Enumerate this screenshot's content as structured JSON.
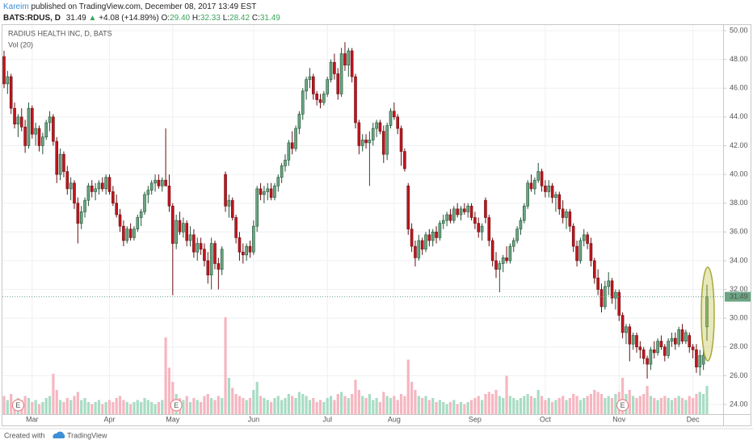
{
  "header": {
    "author": "Kareim",
    "published": "published on TradingView.com, December 08, 2017 13:49 EST",
    "symbol": "BATS:RDUS, D",
    "last": "31.49",
    "change_arrow": "▲",
    "change": "+4.08 (+14.89%)",
    "ohlc": [
      {
        "label": "O:",
        "value": "29.40"
      },
      {
        "label": "H:",
        "value": "32.33"
      },
      {
        "label": "L:",
        "value": "28.42"
      },
      {
        "label": "C:",
        "value": "31.49"
      }
    ]
  },
  "footer": {
    "created": "Created with",
    "brand": "TradingView"
  },
  "chart_data": {
    "type": "candlestick",
    "title": "RADIUS HEALTH INC, D, BATS",
    "volume_label": "Vol (20)",
    "up_color": "#6ba583",
    "up_border": "#225437",
    "down_color": "#c0161e",
    "down_border": "#6b0f12",
    "volume_up_color": "#a8dcc4",
    "volume_down_color": "#f6b6c0",
    "ylim": [
      24,
      50
    ],
    "yticks": [
      {
        "value": 24,
        "label": "24.00"
      },
      {
        "value": 26,
        "label": "26.00"
      },
      {
        "value": 28,
        "label": "28.00"
      },
      {
        "value": 30,
        "label": "30.00"
      },
      {
        "value": 32,
        "label": "32.00"
      },
      {
        "value": 34,
        "label": "34.00"
      },
      {
        "value": 36,
        "label": "36.00"
      },
      {
        "value": 38,
        "label": "38.00"
      },
      {
        "value": 40,
        "label": "40.00"
      },
      {
        "value": 42,
        "label": "42.00"
      },
      {
        "value": 44,
        "label": "44.00"
      },
      {
        "value": 46,
        "label": "46.00"
      },
      {
        "value": 48,
        "label": "48.00"
      },
      {
        "value": 50,
        "label": "50.00"
      }
    ],
    "grid": true,
    "volume_lim": [
      0,
      5
    ],
    "xticks": [
      {
        "value": 8,
        "label": "Mar"
      },
      {
        "value": 30,
        "label": "Apr"
      },
      {
        "value": 48,
        "label": "May"
      },
      {
        "value": 71,
        "label": "Jun"
      },
      {
        "value": 92,
        "label": "Jul"
      },
      {
        "value": 111,
        "label": "Aug"
      },
      {
        "value": 134,
        "label": "Sep"
      },
      {
        "value": 154,
        "label": "Oct"
      },
      {
        "value": 175,
        "label": "Nov"
      },
      {
        "value": 196,
        "label": "Dec"
      }
    ],
    "events": [
      {
        "index": 4,
        "label": "E"
      },
      {
        "index": 49,
        "label": "E"
      },
      {
        "index": 176,
        "label": "E"
      }
    ],
    "candles": [
      [
        48.2,
        48.6,
        46.0,
        46.3
      ],
      [
        46.3,
        47.2,
        45.6,
        46.8
      ],
      [
        46.8,
        47.0,
        44.2,
        44.6
      ],
      [
        44.6,
        45.0,
        43.2,
        43.5
      ],
      [
        43.5,
        44.2,
        42.6,
        44.0
      ],
      [
        44.0,
        44.6,
        43.0,
        43.3
      ],
      [
        43.3,
        43.8,
        41.5,
        42.0
      ],
      [
        42.0,
        45.0,
        41.8,
        44.6
      ],
      [
        44.6,
        44.8,
        42.5,
        42.8
      ],
      [
        42.8,
        43.6,
        42.0,
        43.2
      ],
      [
        43.2,
        43.4,
        41.6,
        42.0
      ],
      [
        42.0,
        42.9,
        41.4,
        42.6
      ],
      [
        42.6,
        43.8,
        42.4,
        43.6
      ],
      [
        43.6,
        44.4,
        43.0,
        44.0
      ],
      [
        44.0,
        44.2,
        42.0,
        42.3
      ],
      [
        42.3,
        42.6,
        39.4,
        40.0
      ],
      [
        40.0,
        41.8,
        39.6,
        41.4
      ],
      [
        41.4,
        41.6,
        39.8,
        40.2
      ],
      [
        40.2,
        40.6,
        38.6,
        39.0
      ],
      [
        39.0,
        39.8,
        38.2,
        39.4
      ],
      [
        39.4,
        39.6,
        37.6,
        38.0
      ],
      [
        38.0,
        38.4,
        35.2,
        36.6
      ],
      [
        36.6,
        37.8,
        36.2,
        37.4
      ],
      [
        37.4,
        38.4,
        37.0,
        38.2
      ],
      [
        38.2,
        39.4,
        37.8,
        39.2
      ],
      [
        39.2,
        39.6,
        38.4,
        38.8
      ],
      [
        38.8,
        39.4,
        38.2,
        39.0
      ],
      [
        39.0,
        39.6,
        38.6,
        39.4
      ],
      [
        39.4,
        39.8,
        38.8,
        39.0
      ],
      [
        39.0,
        40.0,
        38.6,
        39.8
      ],
      [
        39.8,
        40.0,
        38.6,
        38.8
      ],
      [
        38.8,
        39.2,
        37.8,
        38.0
      ],
      [
        38.0,
        38.6,
        37.0,
        37.2
      ],
      [
        37.2,
        37.6,
        36.0,
        36.4
      ],
      [
        36.4,
        36.8,
        35.0,
        35.4
      ],
      [
        35.4,
        36.4,
        35.2,
        36.2
      ],
      [
        36.2,
        36.6,
        35.4,
        35.6
      ],
      [
        35.6,
        36.4,
        35.4,
        36.2
      ],
      [
        36.2,
        37.2,
        36.0,
        37.0
      ],
      [
        37.0,
        37.6,
        36.4,
        37.4
      ],
      [
        37.4,
        38.8,
        37.2,
        38.6
      ],
      [
        38.6,
        39.2,
        38.0,
        38.9
      ],
      [
        38.9,
        39.6,
        38.6,
        39.4
      ],
      [
        39.4,
        40.0,
        38.8,
        39.6
      ],
      [
        39.6,
        40.0,
        39.0,
        39.2
      ],
      [
        39.2,
        39.8,
        38.8,
        39.6
      ],
      [
        39.6,
        43.2,
        39.4,
        39.2
      ],
      [
        39.2,
        40.0,
        37.4,
        37.8
      ],
      [
        37.8,
        38.0,
        31.6,
        35.2
      ],
      [
        35.2,
        37.2,
        34.8,
        36.8
      ],
      [
        36.8,
        37.4,
        35.8,
        36.0
      ],
      [
        36.0,
        37.0,
        35.6,
        36.6
      ],
      [
        36.6,
        36.8,
        35.0,
        35.4
      ],
      [
        35.4,
        36.4,
        35.0,
        35.8
      ],
      [
        35.8,
        36.2,
        34.2,
        34.6
      ],
      [
        34.6,
        35.6,
        34.0,
        35.2
      ],
      [
        35.2,
        35.6,
        34.4,
        34.8
      ],
      [
        34.8,
        35.2,
        33.6,
        34.0
      ],
      [
        34.0,
        34.6,
        32.4,
        33.0
      ],
      [
        33.0,
        35.6,
        32.0,
        35.2
      ],
      [
        35.2,
        35.4,
        33.4,
        33.8
      ],
      [
        33.8,
        34.2,
        32.0,
        33.4
      ],
      [
        33.4,
        35.0,
        33.0,
        34.8
      ],
      [
        40.0,
        40.2,
        37.4,
        37.8
      ],
      [
        37.8,
        38.6,
        37.0,
        38.2
      ],
      [
        38.2,
        38.4,
        36.8,
        37.0
      ],
      [
        37.0,
        37.2,
        35.2,
        35.6
      ],
      [
        35.6,
        36.0,
        34.0,
        34.6
      ],
      [
        34.6,
        35.2,
        33.8,
        34.4
      ],
      [
        34.4,
        35.2,
        34.0,
        35.0
      ],
      [
        35.0,
        35.4,
        34.2,
        34.6
      ],
      [
        34.6,
        36.8,
        34.4,
        36.4
      ],
      [
        36.4,
        39.2,
        36.0,
        39.0
      ],
      [
        39.0,
        39.4,
        38.2,
        38.6
      ],
      [
        38.6,
        39.2,
        38.0,
        38.8
      ],
      [
        38.8,
        39.4,
        38.2,
        39.0
      ],
      [
        39.0,
        39.4,
        38.2,
        38.4
      ],
      [
        38.4,
        39.4,
        38.2,
        39.2
      ],
      [
        39.2,
        40.0,
        38.8,
        39.8
      ],
      [
        39.8,
        40.8,
        39.4,
        40.6
      ],
      [
        40.6,
        41.4,
        40.2,
        41.0
      ],
      [
        41.0,
        42.4,
        40.6,
        42.2
      ],
      [
        42.2,
        43.0,
        41.4,
        41.8
      ],
      [
        41.8,
        43.4,
        41.6,
        43.2
      ],
      [
        43.2,
        44.4,
        42.8,
        44.2
      ],
      [
        44.2,
        46.0,
        43.8,
        45.8
      ],
      [
        45.8,
        46.8,
        45.2,
        46.6
      ],
      [
        46.6,
        47.4,
        46.0,
        46.8
      ],
      [
        46.8,
        47.0,
        45.2,
        45.6
      ],
      [
        45.6,
        45.8,
        44.8,
        45.2
      ],
      [
        45.2,
        45.6,
        44.6,
        45.0
      ],
      [
        45.0,
        45.8,
        44.8,
        45.6
      ],
      [
        45.6,
        46.8,
        45.4,
        46.6
      ],
      [
        46.6,
        48.0,
        46.4,
        47.8
      ],
      [
        47.8,
        48.4,
        46.6,
        47.0
      ],
      [
        47.0,
        47.4,
        45.2,
        45.6
      ],
      [
        45.6,
        48.8,
        45.4,
        48.4
      ],
      [
        48.4,
        49.2,
        47.2,
        47.6
      ],
      [
        47.6,
        48.8,
        46.8,
        48.6
      ],
      [
        48.6,
        48.8,
        46.4,
        46.8
      ],
      [
        46.8,
        47.0,
        43.2,
        43.6
      ],
      [
        43.6,
        43.8,
        41.4,
        42.0
      ],
      [
        42.0,
        42.8,
        41.6,
        42.4
      ],
      [
        42.4,
        42.8,
        41.8,
        42.2
      ],
      [
        42.2,
        43.0,
        39.2,
        42.4
      ],
      [
        42.4,
        43.6,
        42.0,
        43.2
      ],
      [
        43.2,
        43.8,
        42.6,
        43.6
      ],
      [
        43.6,
        43.8,
        42.8,
        43.0
      ],
      [
        43.0,
        43.4,
        40.8,
        41.4
      ],
      [
        41.4,
        43.6,
        41.0,
        43.4
      ],
      [
        43.4,
        44.6,
        43.2,
        44.4
      ],
      [
        44.4,
        45.0,
        43.8,
        44.0
      ],
      [
        44.0,
        44.2,
        42.8,
        43.2
      ],
      [
        43.2,
        43.4,
        40.6,
        41.6
      ],
      [
        41.6,
        41.8,
        40.2,
        40.4
      ],
      [
        39.2,
        39.4,
        35.8,
        36.2
      ],
      [
        36.2,
        36.6,
        34.6,
        35.0
      ],
      [
        35.0,
        35.4,
        33.6,
        34.2
      ],
      [
        34.2,
        35.8,
        34.0,
        35.4
      ],
      [
        35.4,
        35.6,
        34.4,
        34.8
      ],
      [
        34.8,
        36.0,
        34.6,
        35.8
      ],
      [
        35.8,
        36.2,
        35.0,
        35.4
      ],
      [
        35.4,
        36.2,
        35.0,
        36.0
      ],
      [
        36.0,
        36.4,
        35.2,
        35.6
      ],
      [
        35.6,
        36.8,
        35.4,
        36.6
      ],
      [
        36.6,
        37.2,
        36.2,
        36.8
      ],
      [
        36.8,
        37.4,
        36.4,
        37.2
      ],
      [
        37.2,
        37.6,
        36.6,
        36.8
      ],
      [
        36.8,
        37.8,
        36.6,
        37.6
      ],
      [
        37.6,
        38.0,
        37.0,
        37.2
      ],
      [
        37.2,
        37.8,
        36.8,
        37.6
      ],
      [
        37.6,
        38.0,
        37.2,
        37.4
      ],
      [
        37.4,
        38.0,
        37.0,
        37.8
      ],
      [
        37.8,
        38.0,
        36.8,
        37.0
      ],
      [
        37.0,
        37.4,
        36.2,
        36.6
      ],
      [
        36.6,
        37.0,
        35.6,
        36.0
      ],
      [
        36.0,
        36.6,
        35.4,
        36.4
      ],
      [
        38.2,
        38.4,
        36.6,
        37.0
      ],
      [
        37.0,
        37.2,
        35.0,
        35.4
      ],
      [
        35.4,
        35.6,
        33.6,
        34.0
      ],
      [
        34.0,
        34.6,
        32.8,
        33.4
      ],
      [
        33.4,
        34.0,
        31.8,
        33.8
      ],
      [
        33.8,
        34.4,
        33.2,
        34.2
      ],
      [
        34.2,
        35.0,
        33.8,
        34.0
      ],
      [
        34.0,
        35.2,
        33.8,
        35.0
      ],
      [
        35.0,
        35.6,
        34.6,
        35.4
      ],
      [
        35.4,
        36.4,
        35.2,
        36.2
      ],
      [
        36.2,
        37.0,
        35.8,
        36.8
      ],
      [
        36.8,
        38.0,
        36.6,
        37.8
      ],
      [
        37.8,
        39.6,
        37.6,
        39.4
      ],
      [
        39.4,
        40.0,
        38.8,
        39.0
      ],
      [
        39.0,
        39.8,
        38.6,
        39.6
      ],
      [
        39.6,
        40.8,
        39.4,
        40.2
      ],
      [
        40.2,
        40.4,
        38.8,
        39.2
      ],
      [
        39.2,
        39.6,
        38.4,
        38.8
      ],
      [
        38.8,
        39.6,
        38.4,
        39.2
      ],
      [
        39.2,
        39.4,
        38.0,
        38.4
      ],
      [
        38.4,
        38.8,
        37.4,
        38.6
      ],
      [
        38.6,
        38.8,
        37.2,
        37.6
      ],
      [
        37.6,
        38.2,
        36.6,
        37.0
      ],
      [
        37.0,
        37.6,
        36.2,
        37.4
      ],
      [
        37.4,
        37.6,
        36.0,
        36.4
      ],
      [
        36.4,
        36.6,
        34.6,
        35.0
      ],
      [
        35.0,
        35.4,
        33.6,
        34.0
      ],
      [
        34.0,
        35.6,
        33.8,
        35.4
      ],
      [
        35.4,
        36.2,
        35.0,
        35.8
      ],
      [
        35.8,
        36.0,
        34.8,
        35.2
      ],
      [
        35.2,
        35.6,
        33.6,
        34.0
      ],
      [
        34.0,
        34.2,
        32.4,
        32.8
      ],
      [
        32.8,
        33.4,
        31.6,
        32.0
      ],
      [
        32.0,
        32.4,
        30.4,
        30.8
      ],
      [
        30.8,
        32.6,
        30.6,
        32.2
      ],
      [
        32.2,
        33.2,
        31.6,
        32.6
      ],
      [
        32.6,
        32.8,
        31.0,
        31.4
      ],
      [
        31.4,
        32.0,
        30.6,
        31.8
      ],
      [
        31.8,
        32.0,
        29.8,
        30.2
      ],
      [
        30.2,
        30.4,
        28.6,
        29.0
      ],
      [
        29.0,
        29.6,
        28.2,
        29.4
      ],
      [
        29.4,
        29.6,
        27.0,
        28.2
      ],
      [
        28.2,
        29.0,
        27.8,
        28.8
      ],
      [
        28.8,
        29.0,
        27.6,
        28.0
      ],
      [
        28.0,
        28.4,
        27.2,
        27.8
      ],
      [
        27.8,
        28.0,
        26.8,
        27.2
      ],
      [
        27.2,
        27.4,
        25.8,
        26.8
      ],
      [
        26.8,
        28.0,
        26.4,
        27.8
      ],
      [
        27.8,
        28.4,
        27.2,
        27.6
      ],
      [
        27.6,
        28.6,
        27.4,
        28.4
      ],
      [
        28.4,
        28.8,
        27.8,
        28.0
      ],
      [
        28.0,
        28.2,
        27.0,
        27.4
      ],
      [
        27.4,
        28.6,
        27.2,
        28.4
      ],
      [
        28.4,
        29.0,
        28.0,
        28.6
      ],
      [
        28.6,
        29.0,
        27.8,
        28.2
      ],
      [
        28.2,
        29.4,
        28.0,
        29.2
      ],
      [
        29.2,
        29.6,
        28.2,
        28.4
      ],
      [
        28.4,
        29.2,
        28.2,
        29.0
      ],
      [
        28.8,
        29.0,
        27.6,
        28.0
      ],
      [
        28.0,
        28.2,
        27.2,
        27.8
      ],
      [
        27.8,
        28.2,
        26.2,
        26.6
      ],
      [
        26.6,
        27.8,
        26.0,
        27.4
      ],
      [
        26.8,
        27.8,
        26.4,
        27.41
      ],
      [
        29.4,
        32.33,
        28.42,
        31.49
      ]
    ],
    "volume": [
      0.9,
      0.7,
      1.0,
      0.6,
      0.8,
      0.7,
      0.9,
      0.8,
      0.6,
      0.7,
      0.5,
      0.6,
      0.8,
      0.9,
      2.0,
      1.2,
      0.7,
      0.6,
      0.8,
      0.7,
      0.9,
      1.1,
      0.7,
      0.8,
      0.6,
      0.5,
      0.6,
      0.7,
      0.5,
      0.6,
      0.7,
      0.6,
      0.8,
      0.9,
      0.7,
      0.6,
      0.5,
      0.6,
      0.7,
      0.6,
      0.8,
      0.7,
      0.6,
      0.5,
      0.6,
      0.7,
      3.8,
      2.3,
      1.6,
      1.0,
      0.8,
      0.7,
      0.9,
      0.6,
      0.8,
      0.7,
      0.6,
      0.9,
      1.0,
      0.8,
      0.7,
      0.9,
      0.8,
      4.8,
      1.8,
      1.3,
      1.0,
      0.9,
      0.8,
      0.7,
      0.8,
      1.2,
      1.6,
      0.9,
      0.8,
      0.7,
      0.6,
      0.8,
      0.9,
      0.7,
      0.8,
      1.0,
      0.9,
      0.8,
      1.1,
      1.0,
      0.9,
      0.7,
      0.8,
      0.6,
      0.7,
      0.6,
      0.8,
      0.9,
      0.7,
      1.0,
      1.1,
      0.9,
      0.8,
      1.0,
      1.7,
      1.2,
      0.9,
      0.8,
      1.0,
      0.7,
      0.8,
      0.6,
      1.1,
      0.9,
      0.8,
      0.9,
      0.7,
      1.0,
      0.9,
      2.7,
      1.6,
      1.2,
      0.9,
      0.8,
      0.9,
      0.7,
      0.8,
      0.6,
      0.7,
      0.6,
      0.5,
      0.6,
      0.7,
      0.5,
      0.6,
      0.5,
      0.6,
      0.7,
      0.8,
      0.9,
      0.7,
      1.0,
      1.1,
      1.0,
      1.2,
      0.9,
      0.8,
      1.9,
      0.9,
      0.8,
      0.7,
      0.8,
      0.9,
      1.0,
      0.9,
      0.8,
      1.2,
      0.9,
      0.7,
      0.8,
      0.6,
      0.7,
      0.8,
      0.9,
      0.7,
      0.8,
      1.0,
      0.9,
      0.7,
      0.8,
      0.9,
      1.0,
      1.2,
      1.1,
      1.0,
      0.8,
      0.9,
      0.8,
      1.0,
      1.1,
      1.8,
      1.0,
      1.2,
      0.9,
      0.8,
      0.9,
      1.0,
      1.4,
      0.9,
      0.8,
      0.7,
      0.8,
      0.9,
      0.8,
      0.7,
      0.8,
      0.9,
      0.8,
      0.7,
      0.9,
      0.8,
      1.0,
      1.1,
      1.0,
      1.4
    ]
  }
}
